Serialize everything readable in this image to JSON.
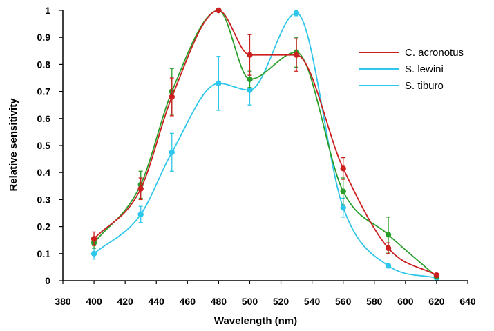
{
  "chart_data": {
    "type": "line",
    "title": "",
    "xlabel": "Wavelength (nm)",
    "ylabel": "Relative sensitivity",
    "xlim": [
      380,
      640
    ],
    "ylim": [
      0,
      1
    ],
    "x_ticks": [
      "380",
      "400",
      "420",
      "440",
      "460",
      "480",
      "500",
      "520",
      "540",
      "560",
      "580",
      "600",
      "620",
      "640"
    ],
    "y_ticks": [
      "0",
      "0.1",
      "0.2",
      "0.3",
      "0.4",
      "0.5",
      "0.6",
      "0.7",
      "0.8",
      "0.9",
      "1"
    ],
    "grid": false,
    "legend_position": "right",
    "series": [
      {
        "name": "C. acronotus",
        "color": "#cc1f1f",
        "points": [
          {
            "x": 400,
            "y": 0.155,
            "err": 0.025
          },
          {
            "x": 430,
            "y": 0.34,
            "err": 0.04
          },
          {
            "x": 450,
            "y": 0.68,
            "err": 0.07
          },
          {
            "x": 480,
            "y": 1.0,
            "err": 0.0
          },
          {
            "x": 500,
            "y": 0.835,
            "err": 0.075
          },
          {
            "x": 530,
            "y": 0.835,
            "err": 0.06
          },
          {
            "x": 560,
            "y": 0.415,
            "err": 0.04
          },
          {
            "x": 589,
            "y": 0.12,
            "err": 0.02
          },
          {
            "x": 620,
            "y": 0.02,
            "err": 0.005
          }
        ]
      },
      {
        "name": "S. lewini",
        "color": "#2ec6ea",
        "points": [
          {
            "x": 400,
            "y": 0.1,
            "err": 0.02
          },
          {
            "x": 430,
            "y": 0.245,
            "err": 0.03
          },
          {
            "x": 450,
            "y": 0.475,
            "err": 0.07
          },
          {
            "x": 480,
            "y": 0.73,
            "err": 0.1
          },
          {
            "x": 500,
            "y": 0.705,
            "err": 0.055
          },
          {
            "x": 530,
            "y": 0.99,
            "err": 0.01
          },
          {
            "x": 560,
            "y": 0.27,
            "err": 0.035
          },
          {
            "x": 589,
            "y": 0.055,
            "err": 0.008
          },
          {
            "x": 620,
            "y": 0.01,
            "err": 0.003
          }
        ]
      },
      {
        "name": "S. tiburo",
        "color": "#2a9e2a",
        "legend_color": "#2ec6ea",
        "points": [
          {
            "x": 400,
            "y": 0.14,
            "err": 0.02
          },
          {
            "x": 430,
            "y": 0.355,
            "err": 0.05
          },
          {
            "x": 450,
            "y": 0.7,
            "err": 0.085
          },
          {
            "x": 480,
            "y": 1.0,
            "err": 0.0
          },
          {
            "x": 500,
            "y": 0.745,
            "err": 0.03
          },
          {
            "x": 530,
            "y": 0.845,
            "err": 0.055
          },
          {
            "x": 560,
            "y": 0.33,
            "err": 0.05
          },
          {
            "x": 589,
            "y": 0.17,
            "err": 0.065
          },
          {
            "x": 620,
            "y": 0.015,
            "err": 0.003
          }
        ]
      }
    ]
  }
}
